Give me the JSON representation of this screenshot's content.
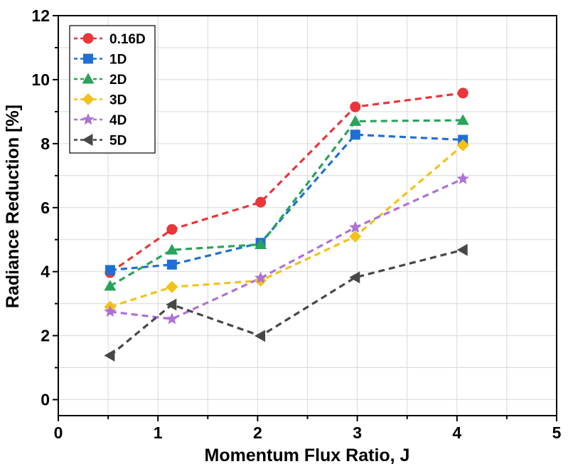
{
  "chart_data": {
    "type": "line",
    "xlabel": "Momentum Flux Ratio, J",
    "ylabel": "Radiance Reduction [%]",
    "xlim": [
      0,
      5
    ],
    "ylim": [
      -0.5,
      12
    ],
    "xticks": [
      "0",
      "1",
      "2",
      "3",
      "4",
      "5"
    ],
    "yticks": [
      "0",
      "2",
      "4",
      "6",
      "8",
      "10",
      "12"
    ],
    "grid": true,
    "legend_position": "top-left",
    "x": [
      0.52,
      1.14,
      2.03,
      2.98,
      4.06
    ],
    "series": [
      {
        "name": "0.16D",
        "values": [
          3.97,
          5.32,
          6.17,
          9.15,
          9.58
        ],
        "color": "#e8363a",
        "marker": "circle"
      },
      {
        "name": "1D",
        "values": [
          4.05,
          4.22,
          4.9,
          8.28,
          8.12
        ],
        "color": "#1f6fd6",
        "marker": "square"
      },
      {
        "name": "2D",
        "values": [
          3.55,
          4.68,
          4.85,
          8.7,
          8.73
        ],
        "color": "#2aa35a",
        "marker": "triangle-up"
      },
      {
        "name": "3D",
        "values": [
          2.9,
          3.52,
          3.72,
          5.1,
          7.95
        ],
        "color": "#f2c21b",
        "marker": "diamond"
      },
      {
        "name": "4D",
        "values": [
          2.75,
          2.52,
          3.8,
          5.38,
          6.9
        ],
        "color": "#ad72d6",
        "marker": "star"
      },
      {
        "name": "5D",
        "values": [
          1.38,
          2.97,
          1.99,
          3.82,
          4.68
        ],
        "color": "#474747",
        "marker": "triangle-left"
      }
    ]
  }
}
